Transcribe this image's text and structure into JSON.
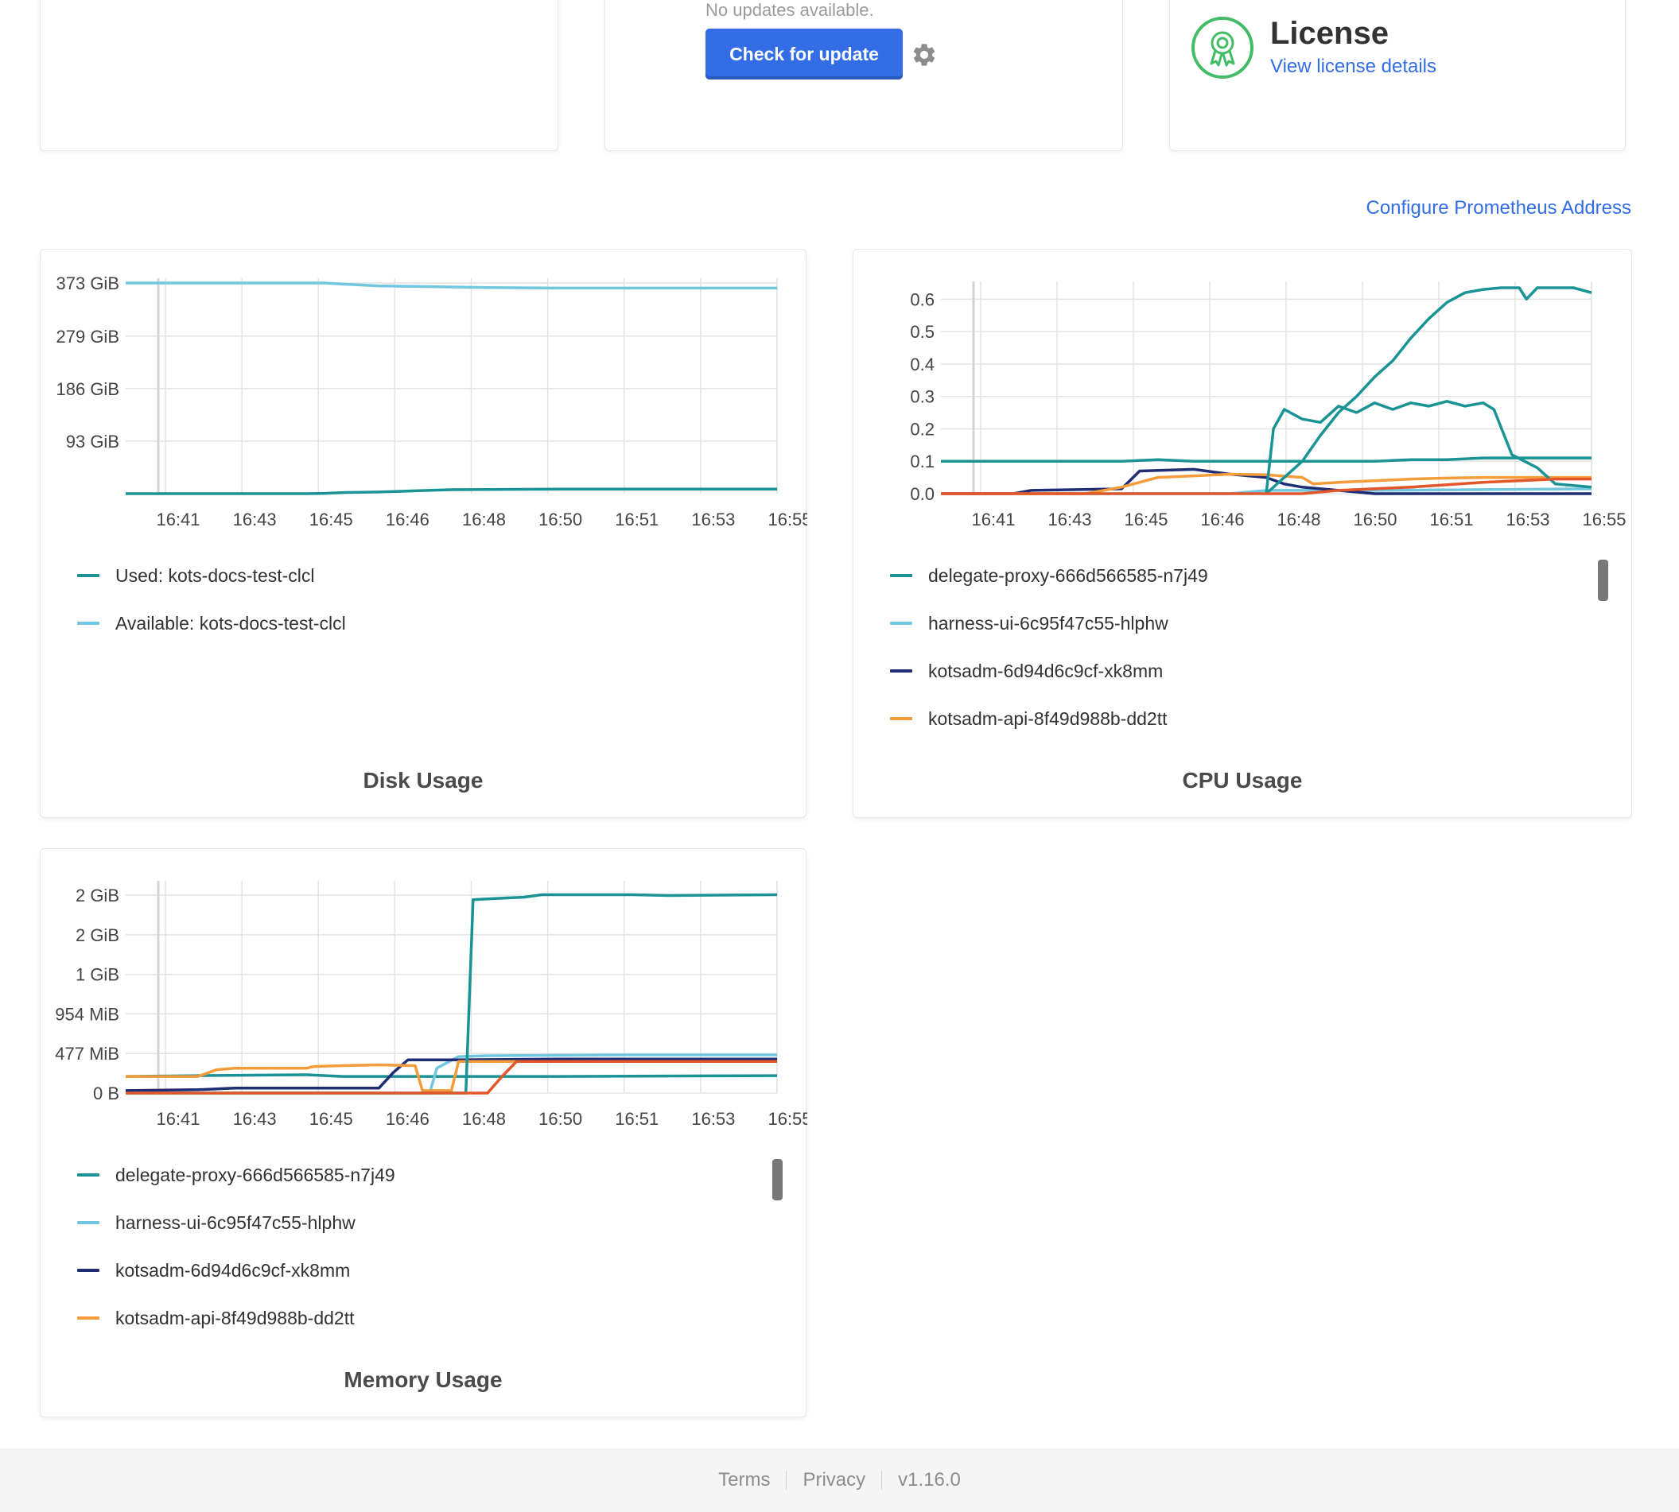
{
  "update_card": {
    "status_text": "No updates available.",
    "check_button_label": "Check for update",
    "settings_icon": "gear-icon"
  },
  "license_card": {
    "title": "License",
    "link_label": "View license details",
    "icon": "ribbon-badge-icon",
    "icon_color": "#44bb66"
  },
  "prometheus_link": "Configure Prometheus Address",
  "footer": {
    "terms": "Terms",
    "privacy": "Privacy",
    "version": "v1.16.0"
  },
  "colors": {
    "accent": "#326de6",
    "teal": "#1a9394",
    "light_blue": "#71c7e0",
    "navy": "#1f2d74",
    "orange": "#f59b3a",
    "red_orange": "#e2562a"
  },
  "chart_data": [
    {
      "id": "disk",
      "type": "line",
      "title": "Disk Usage",
      "x_ticks": [
        "16:41",
        "16:43",
        "16:45",
        "16:46",
        "16:48",
        "16:50",
        "16:51",
        "16:53",
        "16:55"
      ],
      "y_ticks": [
        "373 GiB",
        "279 GiB",
        "186 GiB",
        "93 GiB"
      ],
      "y_tick_values": [
        373,
        279,
        186,
        93
      ],
      "ylim": [
        0,
        373
      ],
      "x_range": [
        0,
        18
      ],
      "grid": true,
      "legend_placement": "bottom",
      "series": [
        {
          "name": "Used: kots-docs-test-clcl",
          "color": "#1a9394",
          "points": [
            [
              0,
              0
            ],
            [
              5,
              0
            ],
            [
              5.5,
              0.5
            ],
            [
              6,
              2
            ],
            [
              7,
              3
            ],
            [
              8,
              5
            ],
            [
              9,
              7
            ],
            [
              12,
              8
            ],
            [
              18,
              8
            ]
          ]
        },
        {
          "name": "Available: kots-docs-test-clcl",
          "color": "#71c7e0",
          "points": [
            [
              0,
              373
            ],
            [
              5.5,
              373
            ],
            [
              6,
              371
            ],
            [
              7,
              368
            ],
            [
              8,
              367
            ],
            [
              9,
              366
            ],
            [
              10,
              365
            ],
            [
              12,
              364
            ],
            [
              18,
              364
            ]
          ]
        }
      ]
    },
    {
      "id": "cpu",
      "type": "line",
      "title": "CPU Usage",
      "x_ticks": [
        "16:41",
        "16:43",
        "16:45",
        "16:46",
        "16:48",
        "16:50",
        "16:51",
        "16:53",
        "16:55"
      ],
      "y_ticks": [
        "0.6",
        "0.5",
        "0.4",
        "0.3",
        "0.2",
        "0.1",
        "0.0"
      ],
      "y_tick_values": [
        0.6,
        0.5,
        0.4,
        0.3,
        0.2,
        0.1,
        0.0
      ],
      "ylim": [
        0,
        0.64
      ],
      "x_range": [
        0,
        18
      ],
      "grid": true,
      "legend_placement": "bottom",
      "series": [
        {
          "name": "delegate-proxy-666d566585-n7j49",
          "color": "#1a9394",
          "points": [
            [
              0,
              0.1
            ],
            [
              1,
              0.1
            ],
            [
              2,
              0.1
            ],
            [
              3,
              0.1
            ],
            [
              4,
              0.1
            ],
            [
              5,
              0.1
            ],
            [
              6,
              0.105
            ],
            [
              7,
              0.1
            ],
            [
              8,
              0.1
            ],
            [
              9,
              0.1
            ],
            [
              10,
              0.1
            ],
            [
              11,
              0.1
            ],
            [
              12,
              0.1
            ],
            [
              13,
              0.105
            ],
            [
              14,
              0.105
            ],
            [
              15,
              0.11
            ],
            [
              16,
              0.11
            ],
            [
              17,
              0.11
            ],
            [
              18,
              0.11
            ]
          ]
        },
        {
          "name": "harness-ui-6c95f47c55-hlphw",
          "color": "#71c7e0",
          "points": [
            [
              0,
              0
            ],
            [
              8,
              0
            ],
            [
              9,
              0.01
            ],
            [
              12,
              0.01
            ],
            [
              18,
              0.015
            ]
          ]
        },
        {
          "name": "kotsadm-6d94d6c9cf-xk8mm",
          "color": "#1f2d74",
          "points": [
            [
              0,
              0
            ],
            [
              2,
              0
            ],
            [
              2.5,
              0.01
            ],
            [
              5,
              0.015
            ],
            [
              5.5,
              0.07
            ],
            [
              7,
              0.075
            ],
            [
              8,
              0.06
            ],
            [
              9,
              0.05
            ],
            [
              9.5,
              0.03
            ],
            [
              10,
              0.02
            ],
            [
              11,
              0.01
            ],
            [
              12,
              0
            ],
            [
              18,
              0
            ]
          ]
        },
        {
          "name": "kotsadm-api-8f49d988b-dd2tt",
          "color": "#f59b3a",
          "points": [
            [
              0,
              0
            ],
            [
              4,
              0
            ],
            [
              5,
              0.02
            ],
            [
              6,
              0.05
            ],
            [
              7,
              0.055
            ],
            [
              8,
              0.06
            ],
            [
              9,
              0.058
            ],
            [
              10,
              0.05
            ],
            [
              10.3,
              0.03
            ],
            [
              11,
              0.035
            ],
            [
              12,
              0.04
            ],
            [
              13,
              0.045
            ],
            [
              14,
              0.048
            ],
            [
              15,
              0.05
            ],
            [
              18,
              0.05
            ]
          ]
        },
        {
          "name": "",
          "color": "#1a9394",
          "points": [
            [
              9,
              0
            ],
            [
              9.2,
              0.2
            ],
            [
              9.5,
              0.26
            ],
            [
              10,
              0.23
            ],
            [
              10.5,
              0.22
            ],
            [
              11,
              0.27
            ],
            [
              11.5,
              0.25
            ],
            [
              12,
              0.28
            ],
            [
              12.5,
              0.26
            ],
            [
              13,
              0.28
            ],
            [
              13.5,
              0.27
            ],
            [
              14,
              0.285
            ],
            [
              14.5,
              0.27
            ],
            [
              15,
              0.28
            ],
            [
              15.3,
              0.26
            ],
            [
              15.8,
              0.12
            ],
            [
              16.5,
              0.08
            ],
            [
              17,
              0.03
            ],
            [
              18,
              0.02
            ]
          ]
        },
        {
          "name": "",
          "color": "#1a9394",
          "points": [
            [
              9,
              0
            ],
            [
              9.5,
              0.05
            ],
            [
              10,
              0.1
            ],
            [
              10.5,
              0.18
            ],
            [
              11,
              0.25
            ],
            [
              11.5,
              0.3
            ],
            [
              12,
              0.36
            ],
            [
              12.5,
              0.41
            ],
            [
              13,
              0.48
            ],
            [
              13.5,
              0.54
            ],
            [
              14,
              0.59
            ],
            [
              14.5,
              0.62
            ],
            [
              15,
              0.63
            ],
            [
              15.5,
              0.635
            ],
            [
              16,
              0.635
            ],
            [
              16.2,
              0.6
            ],
            [
              16.5,
              0.635
            ],
            [
              17.5,
              0.635
            ],
            [
              18,
              0.62
            ]
          ]
        },
        {
          "name": "",
          "color": "#e2562a",
          "points": [
            [
              0,
              0
            ],
            [
              10,
              0
            ],
            [
              11,
              0.01
            ],
            [
              13,
              0.02
            ],
            [
              15,
              0.035
            ],
            [
              16,
              0.04
            ],
            [
              17,
              0.045
            ],
            [
              18,
              0.045
            ]
          ]
        }
      ]
    },
    {
      "id": "memory",
      "type": "line",
      "title": "Memory Usage",
      "x_ticks": [
        "16:41",
        "16:43",
        "16:45",
        "16:46",
        "16:48",
        "16:50",
        "16:51",
        "16:53",
        "16:55"
      ],
      "y_ticks": [
        "2 GiB",
        "2 GiB",
        "1 GiB",
        "954 MiB",
        "477 MiB",
        "0 B"
      ],
      "y_tick_values": [
        2384,
        1907,
        1430,
        954,
        477,
        0
      ],
      "ylim": [
        0,
        2500
      ],
      "x_range": [
        0,
        18
      ],
      "grid": true,
      "legend_placement": "bottom",
      "series": [
        {
          "name": "delegate-proxy-666d566585-n7j49",
          "color": "#1a9394",
          "points": [
            [
              0,
              200
            ],
            [
              2,
              210
            ],
            [
              5,
              220
            ],
            [
              6,
              200
            ],
            [
              9,
              200
            ],
            [
              12,
              200
            ],
            [
              18,
              210
            ]
          ]
        },
        {
          "name": "harness-ui-6c95f47c55-hlphw",
          "color": "#71c7e0",
          "points": [
            [
              0,
              0
            ],
            [
              8.4,
              0
            ],
            [
              8.6,
              300
            ],
            [
              9.2,
              440
            ],
            [
              10,
              450
            ],
            [
              14,
              460
            ],
            [
              18,
              460
            ]
          ]
        },
        {
          "name": "kotsadm-6d94d6c9cf-xk8mm",
          "color": "#1f2d74",
          "points": [
            [
              0,
              30
            ],
            [
              2,
              40
            ],
            [
              3,
              60
            ],
            [
              7,
              60
            ],
            [
              7.4,
              250
            ],
            [
              7.8,
              400
            ],
            [
              9,
              400
            ],
            [
              12,
              410
            ],
            [
              18,
              410
            ]
          ]
        },
        {
          "name": "kotsadm-api-8f49d988b-dd2tt",
          "color": "#f59b3a",
          "points": [
            [
              0,
              200
            ],
            [
              2,
              200
            ],
            [
              2.5,
              280
            ],
            [
              3,
              300
            ],
            [
              5,
              300
            ],
            [
              5.2,
              320
            ],
            [
              6,
              330
            ],
            [
              7,
              340
            ],
            [
              8,
              330
            ],
            [
              8.2,
              30
            ],
            [
              9,
              30
            ],
            [
              9.2,
              380
            ],
            [
              18,
              380
            ]
          ]
        },
        {
          "name": "",
          "color": "#1a9394",
          "points": [
            [
              0,
              0
            ],
            [
              9.4,
              0
            ],
            [
              9.6,
              2330
            ],
            [
              10,
              2340
            ],
            [
              11,
              2360
            ],
            [
              11.5,
              2390
            ],
            [
              14,
              2390
            ],
            [
              15,
              2380
            ],
            [
              18,
              2390
            ]
          ]
        },
        {
          "name": "",
          "color": "#e2562a",
          "points": [
            [
              0,
              0
            ],
            [
              10,
              0
            ],
            [
              10.4,
              200
            ],
            [
              10.8,
              380
            ],
            [
              18,
              380
            ]
          ]
        }
      ]
    }
  ]
}
